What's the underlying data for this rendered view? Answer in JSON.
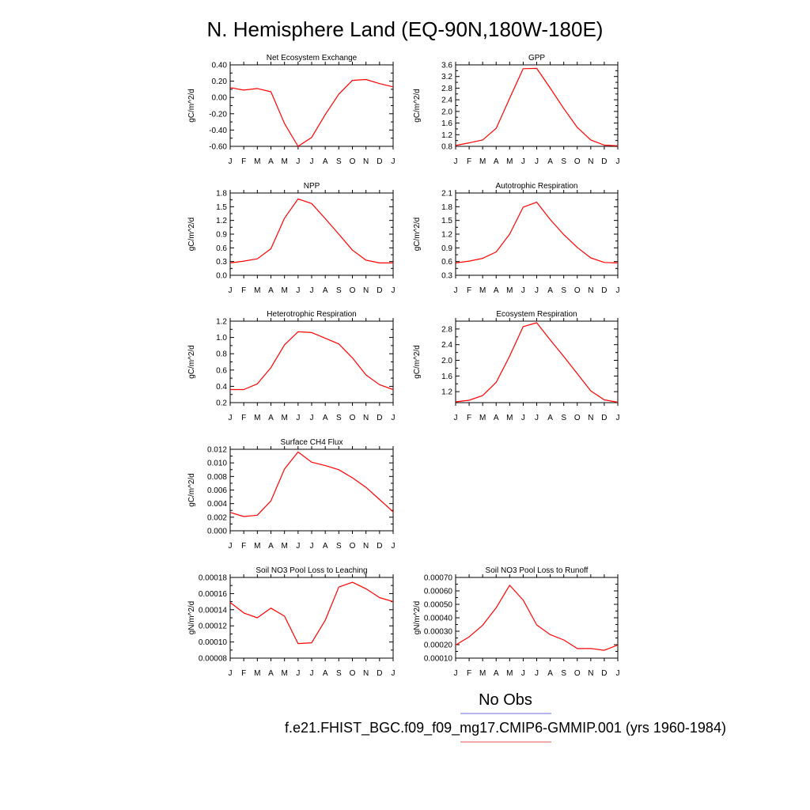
{
  "figure": {
    "title": "N. Hemisphere Land (EQ-90N,180W-180E)",
    "legend": [
      {
        "label": "No Obs",
        "color": "#8a8ae6"
      },
      {
        "label": "f.e21.FHIST_BGC.f09_f09_mg17.CMIP6-GMMIP.001 (yrs 1960-1984)",
        "color": "#e87878"
      }
    ]
  },
  "chart_data": [
    {
      "type": "line",
      "title": "Net Ecosystem Exchange",
      "ylabel": "gC/m^2/d",
      "categories": [
        "J",
        "F",
        "M",
        "A",
        "M",
        "J",
        "J",
        "A",
        "S",
        "O",
        "N",
        "D",
        "J"
      ],
      "ylim": [
        -0.6,
        0.4
      ],
      "ytick_labels": [
        "0.40",
        "0.20",
        "0.00",
        "-0.20",
        "-0.40",
        "-0.60"
      ],
      "ytick_values": [
        0.4,
        0.2,
        0.0,
        -0.2,
        -0.4,
        -0.6
      ],
      "series": [
        {
          "color": "#ff0000",
          "values": [
            0.12,
            0.09,
            0.11,
            0.07,
            -0.32,
            -0.6,
            -0.49,
            -0.21,
            0.04,
            0.21,
            0.22,
            0.17,
            0.13
          ]
        }
      ]
    },
    {
      "type": "line",
      "title": "GPP",
      "ylabel": "gC/m^2/d",
      "categories": [
        "J",
        "F",
        "M",
        "A",
        "M",
        "J",
        "J",
        "A",
        "S",
        "O",
        "N",
        "D",
        "J"
      ],
      "ylim": [
        0.8,
        3.6
      ],
      "ytick_labels": [
        "3.6",
        "3.2",
        "2.8",
        "2.4",
        "2.0",
        "1.6",
        "1.2",
        "0.8"
      ],
      "ytick_values": [
        3.6,
        3.2,
        2.8,
        2.4,
        2.0,
        1.6,
        1.2,
        0.8
      ],
      "series": [
        {
          "color": "#ff0000",
          "values": [
            0.83,
            0.92,
            1.02,
            1.42,
            2.45,
            3.47,
            3.48,
            2.8,
            2.1,
            1.45,
            1.02,
            0.84,
            0.82
          ]
        }
      ]
    },
    {
      "type": "line",
      "title": "NPP",
      "ylabel": "gC/m^2/d",
      "categories": [
        "J",
        "F",
        "M",
        "A",
        "M",
        "J",
        "J",
        "A",
        "S",
        "O",
        "N",
        "D",
        "J"
      ],
      "ylim": [
        0.0,
        1.8
      ],
      "ytick_labels": [
        "1.8",
        "1.5",
        "1.2",
        "0.9",
        "0.6",
        "0.3",
        "0.0"
      ],
      "ytick_values": [
        1.8,
        1.5,
        1.2,
        0.9,
        0.6,
        0.3,
        0.0
      ],
      "series": [
        {
          "color": "#ff0000",
          "values": [
            0.27,
            0.31,
            0.36,
            0.58,
            1.25,
            1.67,
            1.57,
            1.24,
            0.9,
            0.55,
            0.33,
            0.27,
            0.27
          ]
        }
      ]
    },
    {
      "type": "line",
      "title": "Autotrophic Respiration",
      "ylabel": "gC/m^2/d",
      "categories": [
        "J",
        "F",
        "M",
        "A",
        "M",
        "J",
        "J",
        "A",
        "S",
        "O",
        "N",
        "D",
        "J"
      ],
      "ylim": [
        0.3,
        2.1
      ],
      "ytick_labels": [
        "2.1",
        "1.8",
        "1.5",
        "1.2",
        "0.9",
        "0.6",
        "0.3"
      ],
      "ytick_values": [
        2.1,
        1.8,
        1.5,
        1.2,
        0.9,
        0.6,
        0.3
      ],
      "series": [
        {
          "color": "#ff0000",
          "values": [
            0.57,
            0.61,
            0.67,
            0.81,
            1.2,
            1.79,
            1.9,
            1.52,
            1.19,
            0.91,
            0.68,
            0.58,
            0.57
          ]
        }
      ]
    },
    {
      "type": "line",
      "title": "Heterotrophic Respiration",
      "ylabel": "gC/m^2/d",
      "categories": [
        "J",
        "F",
        "M",
        "A",
        "M",
        "J",
        "J",
        "A",
        "S",
        "O",
        "N",
        "D",
        "J"
      ],
      "ylim": [
        0.2,
        1.2
      ],
      "ytick_labels": [
        "1.2",
        "1.0",
        "0.8",
        "0.6",
        "0.4",
        "0.2"
      ],
      "ytick_values": [
        1.2,
        1.0,
        0.8,
        0.6,
        0.4,
        0.2
      ],
      "series": [
        {
          "color": "#ff0000",
          "values": [
            0.36,
            0.36,
            0.43,
            0.63,
            0.91,
            1.07,
            1.06,
            0.99,
            0.92,
            0.75,
            0.54,
            0.42,
            0.36
          ]
        }
      ]
    },
    {
      "type": "line",
      "title": "Ecosystem Respiration",
      "ylabel": "gC/m^2/d",
      "categories": [
        "J",
        "F",
        "M",
        "A",
        "M",
        "J",
        "J",
        "A",
        "S",
        "O",
        "N",
        "D",
        "J"
      ],
      "ylim": [
        0.92,
        3.0
      ],
      "ytick_labels": [
        "2.8",
        "2.4",
        "2.0",
        "1.6",
        "1.2"
      ],
      "ytick_values": [
        2.8,
        2.4,
        2.0,
        1.6,
        1.2
      ],
      "series": [
        {
          "color": "#ff0000",
          "values": [
            0.94,
            0.98,
            1.1,
            1.44,
            2.11,
            2.86,
            2.96,
            2.52,
            2.1,
            1.66,
            1.22,
            0.99,
            0.93
          ]
        }
      ]
    },
    {
      "type": "line",
      "title": "Surface CH4 Flux",
      "ylabel": "gC/m^2/d",
      "categories": [
        "J",
        "F",
        "M",
        "A",
        "M",
        "J",
        "J",
        "A",
        "S",
        "O",
        "N",
        "D",
        "J"
      ],
      "ylim": [
        0.0,
        0.012
      ],
      "ytick_labels": [
        "0.012",
        "0.010",
        "0.008",
        "0.006",
        "0.004",
        "0.002",
        "0.000"
      ],
      "ytick_values": [
        0.012,
        0.01,
        0.008,
        0.006,
        0.004,
        0.002,
        0.0
      ],
      "series": [
        {
          "color": "#ff0000",
          "values": [
            0.0027,
            0.0021,
            0.0023,
            0.0044,
            0.0091,
            0.0116,
            0.0101,
            0.0096,
            0.009,
            0.0078,
            0.0064,
            0.0046,
            0.0028
          ]
        }
      ]
    },
    {
      "type": "line",
      "title": "Soil NO3 Pool Loss to Leaching",
      "ylabel": "gN/m^2/d",
      "categories": [
        "J",
        "F",
        "M",
        "A",
        "M",
        "J",
        "J",
        "A",
        "S",
        "O",
        "N",
        "D",
        "J"
      ],
      "ylim": [
        8e-05,
        0.00018
      ],
      "ytick_labels": [
        "0.00018",
        "0.00016",
        "0.00014",
        "0.00012",
        "0.00010",
        "0.00008"
      ],
      "ytick_values": [
        0.00018,
        0.00016,
        0.00014,
        0.00012,
        0.0001,
        8e-05
      ],
      "series": [
        {
          "color": "#ff0000",
          "values": [
            0.000149,
            0.000136,
            0.00013,
            0.000142,
            0.000132,
            9.8e-05,
            9.9e-05,
            0.000127,
            0.000168,
            0.000174,
            0.000166,
            0.000155,
            0.00015
          ]
        }
      ]
    },
    {
      "type": "line",
      "title": "Soil NO3 Pool Loss to Runoff",
      "ylabel": "gN/m^2/d",
      "categories": [
        "J",
        "F",
        "M",
        "A",
        "M",
        "J",
        "J",
        "A",
        "S",
        "O",
        "N",
        "D",
        "J"
      ],
      "ylim": [
        0.0001,
        0.0007
      ],
      "ytick_labels": [
        "0.00070",
        "0.00060",
        "0.00050",
        "0.00040",
        "0.00030",
        "0.00020",
        "0.00010"
      ],
      "ytick_values": [
        0.0007,
        0.0006,
        0.0005,
        0.0004,
        0.0003,
        0.0002,
        0.0001
      ],
      "series": [
        {
          "color": "#ff0000",
          "values": [
            0.000197,
            0.000258,
            0.000345,
            0.000475,
            0.000642,
            0.000532,
            0.000347,
            0.000275,
            0.000235,
            0.000171,
            0.000172,
            0.000158,
            0.000197
          ]
        }
      ]
    }
  ]
}
